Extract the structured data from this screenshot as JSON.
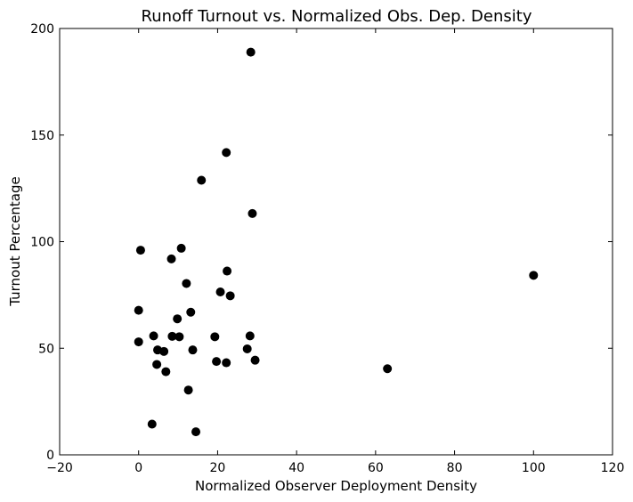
{
  "chart_data": {
    "type": "scatter",
    "title": "Runoff Turnout vs. Normalized Obs. Dep. Density",
    "xlabel": "Normalized Observer Deployment Density",
    "ylabel": "Turnout Percentage",
    "xlim": [
      -20,
      120
    ],
    "ylim": [
      0,
      200
    ],
    "xticks": [
      -20,
      0,
      20,
      40,
      60,
      80,
      100,
      120
    ],
    "yticks": [
      0,
      50,
      100,
      150,
      200
    ],
    "xtick_labels": [
      "−20",
      "0",
      "20",
      "40",
      "60",
      "80",
      "100",
      "120"
    ],
    "ytick_labels": [
      "0",
      "50",
      "100",
      "150",
      "200"
    ],
    "grid": false,
    "marker_color": "#000000",
    "series": [
      {
        "points": [
          {
            "x": 28.4,
            "y": 188.9
          },
          {
            "x": 22.2,
            "y": 141.8
          },
          {
            "x": 15.9,
            "y": 128.8
          },
          {
            "x": 28.8,
            "y": 113.2
          },
          {
            "x": 0.5,
            "y": 96.0
          },
          {
            "x": 10.8,
            "y": 96.9
          },
          {
            "x": 8.3,
            "y": 91.9
          },
          {
            "x": 22.4,
            "y": 86.2
          },
          {
            "x": 100.0,
            "y": 84.2
          },
          {
            "x": 12.1,
            "y": 80.4
          },
          {
            "x": 20.7,
            "y": 76.4
          },
          {
            "x": 23.2,
            "y": 74.6
          },
          {
            "x": 0.0,
            "y": 67.8
          },
          {
            "x": 13.2,
            "y": 66.9
          },
          {
            "x": 9.8,
            "y": 63.8
          },
          {
            "x": 3.8,
            "y": 55.8
          },
          {
            "x": 8.5,
            "y": 55.6
          },
          {
            "x": 10.3,
            "y": 55.4
          },
          {
            "x": 19.3,
            "y": 55.4
          },
          {
            "x": 28.2,
            "y": 55.8
          },
          {
            "x": 0.0,
            "y": 53.0
          },
          {
            "x": 27.5,
            "y": 49.7
          },
          {
            "x": 4.8,
            "y": 49.2
          },
          {
            "x": 13.7,
            "y": 49.2
          },
          {
            "x": 6.4,
            "y": 48.5
          },
          {
            "x": 19.7,
            "y": 43.8
          },
          {
            "x": 22.2,
            "y": 43.2
          },
          {
            "x": 29.5,
            "y": 44.4
          },
          {
            "x": 4.6,
            "y": 42.4
          },
          {
            "x": 63.0,
            "y": 40.4
          },
          {
            "x": 6.9,
            "y": 39.0
          },
          {
            "x": 12.6,
            "y": 30.4
          },
          {
            "x": 3.4,
            "y": 14.4
          },
          {
            "x": 14.5,
            "y": 10.8
          }
        ]
      }
    ]
  }
}
